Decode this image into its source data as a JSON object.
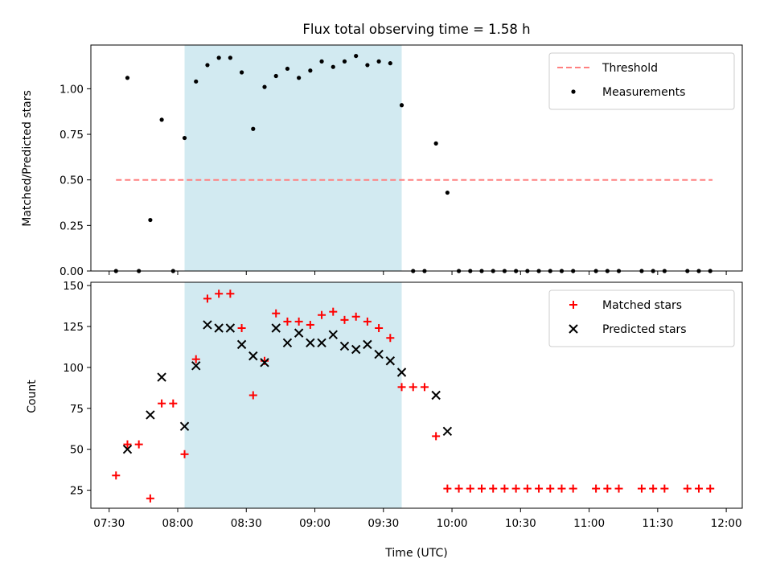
{
  "chart_data": {
    "title": "Flux total observing time = 1.58 h",
    "xlabel": "Time (UTC)",
    "x_ticks": [
      "07:30",
      "08:00",
      "08:30",
      "09:00",
      "09:30",
      "10:00",
      "10:30",
      "11:00",
      "11:30",
      "12:00"
    ],
    "xlim_minutes": [
      442,
      727
    ],
    "shaded_interval": {
      "start": "08:03",
      "end": "09:38",
      "color": "#add8e6"
    },
    "panels": [
      {
        "type": "scatter",
        "ylabel": "Matched/Predicted stars",
        "ylim": [
          0,
          1.24
        ],
        "y_ticks": [
          "0.00",
          "0.25",
          "0.50",
          "0.75",
          "1.00"
        ],
        "legend": {
          "position": "top-right"
        },
        "threshold": {
          "name": "Threshold",
          "value": 0.5,
          "x_start": "07:33",
          "x_end": "11:54",
          "color": "#ff8080"
        },
        "series": [
          {
            "name": "Measurements",
            "marker": "dot",
            "color": "#000000",
            "points": [
              [
                "07:33",
                0.0
              ],
              [
                "07:38",
                1.06
              ],
              [
                "07:43",
                0.0
              ],
              [
                "07:48",
                0.28
              ],
              [
                "07:53",
                0.83
              ],
              [
                "07:58",
                0.0
              ],
              [
                "08:03",
                0.73
              ],
              [
                "08:08",
                1.04
              ],
              [
                "08:13",
                1.13
              ],
              [
                "08:18",
                1.17
              ],
              [
                "08:23",
                1.17
              ],
              [
                "08:28",
                1.09
              ],
              [
                "08:33",
                0.78
              ],
              [
                "08:38",
                1.01
              ],
              [
                "08:43",
                1.07
              ],
              [
                "08:48",
                1.11
              ],
              [
                "08:53",
                1.06
              ],
              [
                "08:58",
                1.1
              ],
              [
                "09:03",
                1.15
              ],
              [
                "09:08",
                1.12
              ],
              [
                "09:13",
                1.15
              ],
              [
                "09:18",
                1.18
              ],
              [
                "09:23",
                1.13
              ],
              [
                "09:28",
                1.15
              ],
              [
                "09:33",
                1.14
              ],
              [
                "09:38",
                0.91
              ],
              [
                "09:43",
                0.0
              ],
              [
                "09:48",
                0.0
              ],
              [
                "09:53",
                0.7
              ],
              [
                "09:58",
                0.43
              ],
              [
                "10:03",
                0.0
              ],
              [
                "10:08",
                0.0
              ],
              [
                "10:13",
                0.0
              ],
              [
                "10:18",
                0.0
              ],
              [
                "10:23",
                0.0
              ],
              [
                "10:28",
                0.0
              ],
              [
                "10:33",
                0.0
              ],
              [
                "10:38",
                0.0
              ],
              [
                "10:43",
                0.0
              ],
              [
                "10:48",
                0.0
              ],
              [
                "10:53",
                0.0
              ],
              [
                "11:03",
                0.0
              ],
              [
                "11:08",
                0.0
              ],
              [
                "11:13",
                0.0
              ],
              [
                "11:23",
                0.0
              ],
              [
                "11:28",
                0.0
              ],
              [
                "11:33",
                0.0
              ],
              [
                "11:43",
                0.0
              ],
              [
                "11:48",
                0.0
              ],
              [
                "11:53",
                0.0
              ]
            ]
          }
        ]
      },
      {
        "type": "scatter",
        "ylabel": "Count",
        "ylim": [
          14,
          152
        ],
        "y_ticks": [
          "25",
          "50",
          "75",
          "100",
          "125",
          "150"
        ],
        "legend": {
          "position": "top-right"
        },
        "series": [
          {
            "name": "Matched stars",
            "marker": "plus",
            "color": "#ff0000",
            "points": [
              [
                "07:33",
                34
              ],
              [
                "07:38",
                53
              ],
              [
                "07:43",
                53
              ],
              [
                "07:48",
                20
              ],
              [
                "07:53",
                78
              ],
              [
                "07:58",
                78
              ],
              [
                "08:03",
                47
              ],
              [
                "08:08",
                105
              ],
              [
                "08:13",
                142
              ],
              [
                "08:18",
                145
              ],
              [
                "08:23",
                145
              ],
              [
                "08:28",
                124
              ],
              [
                "08:33",
                83
              ],
              [
                "08:38",
                104
              ],
              [
                "08:43",
                133
              ],
              [
                "08:48",
                128
              ],
              [
                "08:53",
                128
              ],
              [
                "08:58",
                126
              ],
              [
                "09:03",
                132
              ],
              [
                "09:08",
                134
              ],
              [
                "09:13",
                129
              ],
              [
                "09:18",
                131
              ],
              [
                "09:23",
                128
              ],
              [
                "09:28",
                124
              ],
              [
                "09:33",
                118
              ],
              [
                "09:38",
                88
              ],
              [
                "09:43",
                88
              ],
              [
                "09:48",
                88
              ],
              [
                "09:53",
                58
              ],
              [
                "09:58",
                26
              ],
              [
                "10:03",
                26
              ],
              [
                "10:08",
                26
              ],
              [
                "10:13",
                26
              ],
              [
                "10:18",
                26
              ],
              [
                "10:23",
                26
              ],
              [
                "10:28",
                26
              ],
              [
                "10:33",
                26
              ],
              [
                "10:38",
                26
              ],
              [
                "10:43",
                26
              ],
              [
                "10:48",
                26
              ],
              [
                "10:53",
                26
              ],
              [
                "11:03",
                26
              ],
              [
                "11:08",
                26
              ],
              [
                "11:13",
                26
              ],
              [
                "11:23",
                26
              ],
              [
                "11:28",
                26
              ],
              [
                "11:33",
                26
              ],
              [
                "11:43",
                26
              ],
              [
                "11:48",
                26
              ],
              [
                "11:53",
                26
              ]
            ]
          },
          {
            "name": "Predicted stars",
            "marker": "x",
            "color": "#000000",
            "points": [
              [
                "07:38",
                50
              ],
              [
                "07:48",
                71
              ],
              [
                "07:53",
                94
              ],
              [
                "08:03",
                64
              ],
              [
                "08:08",
                101
              ],
              [
                "08:13",
                126
              ],
              [
                "08:18",
                124
              ],
              [
                "08:23",
                124
              ],
              [
                "08:28",
                114
              ],
              [
                "08:33",
                107
              ],
              [
                "08:38",
                103
              ],
              [
                "08:43",
                124
              ],
              [
                "08:48",
                115
              ],
              [
                "08:53",
                121
              ],
              [
                "08:58",
                115
              ],
              [
                "09:03",
                115
              ],
              [
                "09:08",
                120
              ],
              [
                "09:13",
                113
              ],
              [
                "09:18",
                111
              ],
              [
                "09:23",
                114
              ],
              [
                "09:28",
                108
              ],
              [
                "09:33",
                104
              ],
              [
                "09:38",
                97
              ],
              [
                "09:53",
                83
              ],
              [
                "09:58",
                61
              ]
            ]
          }
        ]
      }
    ]
  }
}
